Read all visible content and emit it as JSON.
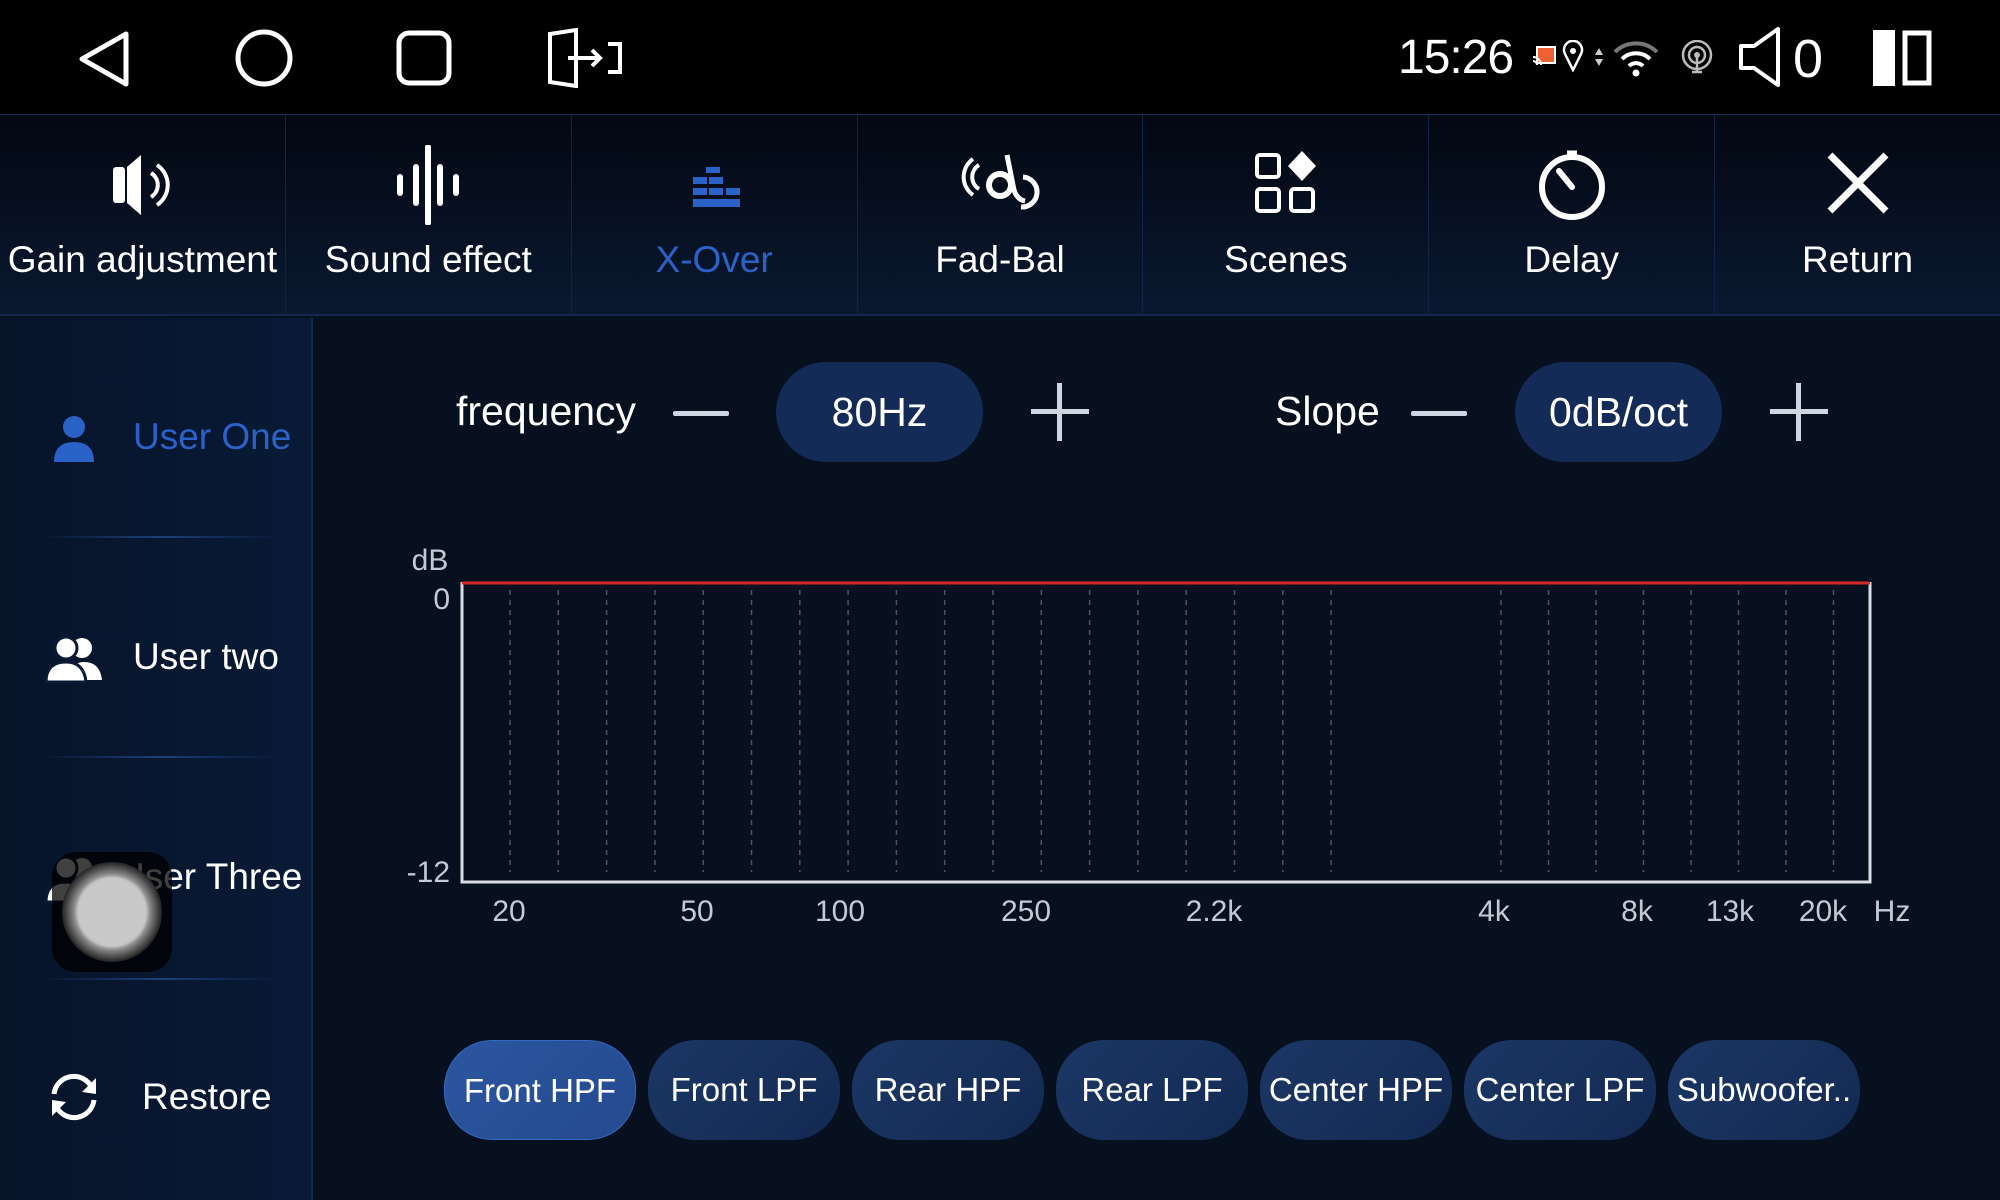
{
  "status_bar": {
    "time": "15:26",
    "volume": "0",
    "icons": [
      "back-icon",
      "home-icon",
      "recents-icon",
      "screen-mirror-icon",
      "cast-icon",
      "location-icon",
      "data-arrows-icon",
      "wifi-icon",
      "hotspot-icon",
      "volume-icon",
      "split-screen-icon"
    ]
  },
  "toolbar": {
    "items": [
      {
        "label": "Gain adjustment",
        "icon": "speaker-icon"
      },
      {
        "label": "Sound effect",
        "icon": "waveform-icon"
      },
      {
        "label": "X-Over",
        "icon": "equalizer-bars-icon",
        "active": true
      },
      {
        "label": "Fad-Bal",
        "icon": "fader-balance-icon"
      },
      {
        "label": "Scenes",
        "icon": "scenes-grid-icon"
      },
      {
        "label": "Delay",
        "icon": "timer-icon"
      },
      {
        "label": "Return",
        "icon": "close-icon"
      }
    ]
  },
  "sidebar": {
    "items": [
      {
        "label": "User One",
        "icon": "user-icon",
        "active": true
      },
      {
        "label": "User two",
        "icon": "users-icon"
      },
      {
        "label": "User Three",
        "icon": "users-icon"
      },
      {
        "label": "Restore",
        "icon": "refresh-icon"
      }
    ]
  },
  "controls": {
    "frequency": {
      "label": "frequency",
      "value": "80Hz"
    },
    "slope": {
      "label": "Slope",
      "value": "0dB/oct"
    }
  },
  "chart_data": {
    "type": "line",
    "ylabel": "dB",
    "xlabel": "Hz",
    "ylim": [
      -12,
      0
    ],
    "yticks": [
      "0",
      "-12"
    ],
    "xticks": [
      "20",
      "50",
      "100",
      "250",
      "2.2k",
      "4k",
      "8k",
      "13k",
      "20k"
    ],
    "grid": "vertical dashed",
    "series": [
      {
        "values": [
          0,
          0,
          0,
          0,
          0,
          0,
          0,
          0,
          0
        ],
        "color": "#d42a2a"
      }
    ]
  },
  "channels": [
    {
      "label": "Front HPF",
      "active": true
    },
    {
      "label": "Front LPF"
    },
    {
      "label": "Rear HPF"
    },
    {
      "label": "Rear LPF"
    },
    {
      "label": "Center HPF"
    },
    {
      "label": "Center LPF"
    },
    {
      "label": "Subwoofer.."
    }
  ],
  "colors": {
    "accent": "#2b62c8",
    "background": "#06101f",
    "pill": "#142b58",
    "curve": "#d42a2a"
  }
}
